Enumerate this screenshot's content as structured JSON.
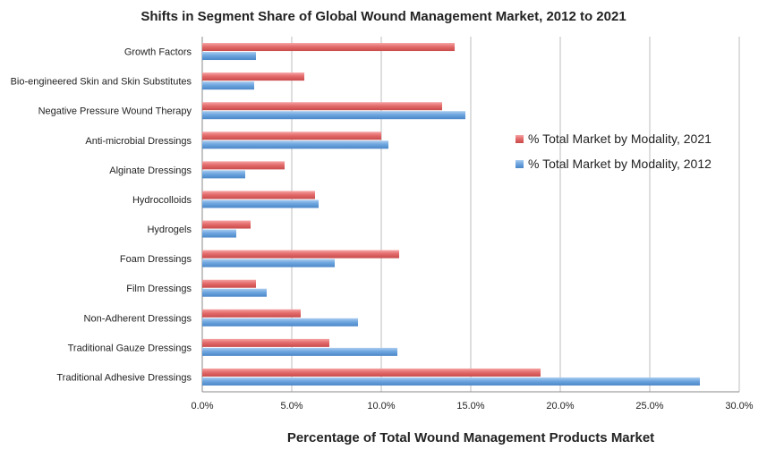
{
  "chart_data": {
    "type": "bar",
    "orientation": "horizontal",
    "title": "Shifts in Segment Share of Global Wound Management Market, 2012 to 2021",
    "xlabel": "Percentage of Total Wound Management Products Market",
    "ylabel": "",
    "xlim": [
      0,
      30
    ],
    "ticks": [
      "0.0%",
      "5.0%",
      "10.0%",
      "15.0%",
      "20.0%",
      "25.0%",
      "30.0%"
    ],
    "grid": true,
    "legend_position": "right",
    "categories": [
      "Growth Factors",
      "Bio-engineered Skin and Skin Substitutes",
      "Negative Pressure Wound Therapy",
      "Anti-microbial Dressings",
      "Alginate Dressings",
      "Hydrocolloids",
      "Hydrogels",
      "Foam Dressings",
      "Film Dressings",
      "Non-Adherent Dressings",
      "Traditional Gauze Dressings",
      "Traditional Adhesive Dressings"
    ],
    "series": [
      {
        "name": "% Total Market by Modality, 2021",
        "color": "#e06666",
        "values": [
          14.1,
          5.7,
          13.4,
          10.0,
          4.6,
          6.3,
          2.7,
          11.0,
          3.0,
          5.5,
          7.1,
          18.9
        ]
      },
      {
        "name": "% Total Market by Modality, 2012",
        "color": "#5b9bd5",
        "values": [
          3.0,
          2.9,
          14.7,
          10.4,
          2.4,
          6.5,
          1.9,
          7.4,
          3.6,
          8.7,
          10.9,
          27.8
        ]
      }
    ]
  }
}
